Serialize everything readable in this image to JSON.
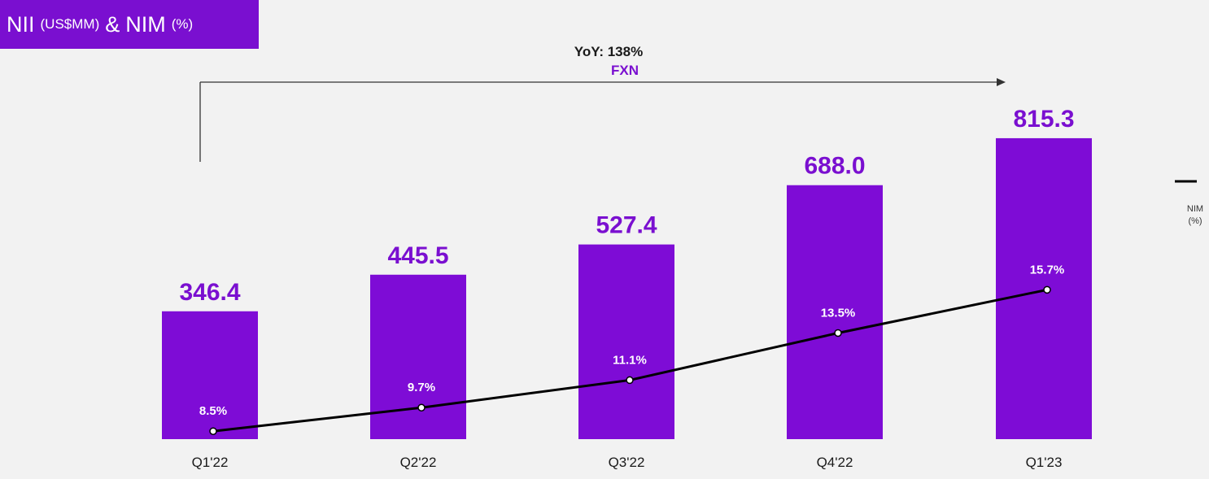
{
  "colors": {
    "bar": "#7e0cd6",
    "accent": "#7a0fd0",
    "line": "#000000",
    "background": "#f2f2f2",
    "text": "#1a1a1a"
  },
  "title": {
    "nii": "NII",
    "nii_unit": "(US$MM)",
    "amp": "&",
    "nim": "NIM",
    "nim_unit": "(%)"
  },
  "annotation": {
    "yoy": "YoY: 138%",
    "entity": "FXN"
  },
  "legend": {
    "line1": "NIM",
    "line2": "(%)"
  },
  "chart_data": {
    "type": "bar",
    "categories": [
      "Q1'22",
      "Q2'22",
      "Q3'22",
      "Q4'22",
      "Q1'23"
    ],
    "series": [
      {
        "type": "bar",
        "values": [
          346.4,
          445.5,
          527.4,
          688.0,
          815.3
        ],
        "labels": [
          "346.4",
          "445.5",
          "527.4",
          "688.0",
          "815.3"
        ]
      },
      {
        "name": "NIM (%)",
        "type": "line",
        "values": [
          8.5,
          9.7,
          11.1,
          13.5,
          15.7
        ],
        "labels": [
          "8.5%",
          "9.7%",
          "11.1%",
          "13.5%",
          "15.7%"
        ]
      }
    ],
    "title": "NII (US$MM) & NIM (%)",
    "annotation": "YoY: 138%",
    "legend_position": "right",
    "grid": false
  }
}
